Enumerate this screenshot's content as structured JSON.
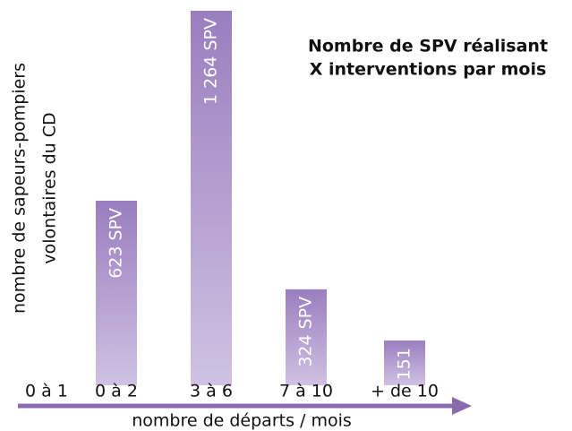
{
  "chart_data": {
    "type": "bar",
    "title": [
      "Nombre de SPV réalisant",
      "X interventions par mois"
    ],
    "y_label": [
      "nombre de sapeurs-pompiers",
      "volontaires du CD"
    ],
    "x_label": "nombre de départs / mois",
    "categories": [
      "0 à 1",
      "0 à 2",
      "3 à 6",
      "7 à 10",
      "+ de 10"
    ],
    "values": [
      null,
      623,
      1264,
      324,
      151
    ],
    "value_labels": [
      null,
      "623 SPV",
      "1 264 SPV",
      "324 SPV",
      "151"
    ],
    "color": "#9c82c0"
  }
}
